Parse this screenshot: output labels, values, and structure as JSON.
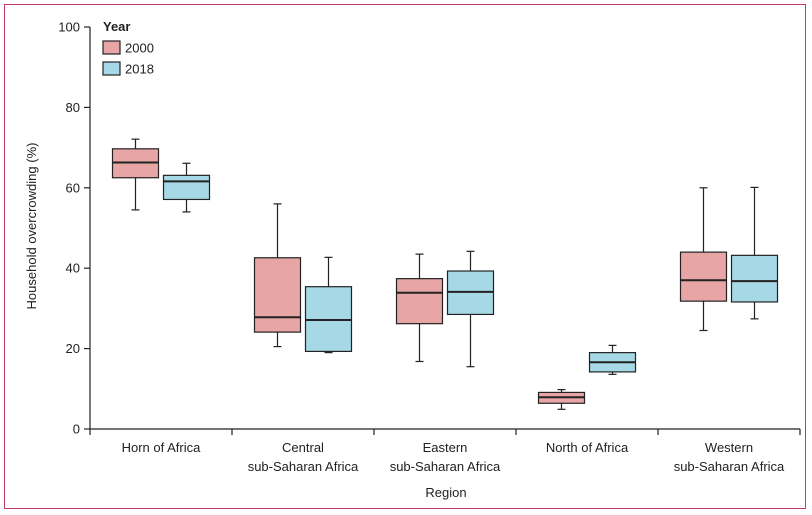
{
  "chart_data": {
    "type": "boxplot",
    "title": "",
    "xlabel": "Region",
    "ylabel": "Household overcrowding (%)",
    "ylim": [
      0,
      100
    ],
    "yticks": [
      0,
      20,
      40,
      60,
      80,
      100
    ],
    "categories": [
      [
        "Horn of Africa"
      ],
      [
        "Central",
        "sub-Saharan Africa"
      ],
      [
        "Eastern",
        "sub-Saharan Africa"
      ],
      [
        "North of Africa"
      ],
      [
        "Western",
        "sub-Saharan Africa"
      ]
    ],
    "legend": {
      "title": "Year",
      "placement": "top-left"
    },
    "series": [
      {
        "name": "2000",
        "color": "#e8a5a5",
        "boxes": [
          {
            "min": 54.5,
            "q1": 62.5,
            "median": 66.3,
            "q3": 69.7,
            "max": 72.1
          },
          {
            "min": 20.5,
            "q1": 24.1,
            "median": 27.8,
            "q3": 42.6,
            "max": 56.0
          },
          {
            "min": 16.8,
            "q1": 26.2,
            "median": 33.9,
            "q3": 37.4,
            "max": 43.5
          },
          {
            "min": 4.9,
            "q1": 6.4,
            "median": 7.9,
            "q3": 9.1,
            "max": 9.8
          },
          {
            "min": 24.5,
            "q1": 31.8,
            "median": 37.0,
            "q3": 44.0,
            "max": 60.0
          }
        ]
      },
      {
        "name": "2018",
        "color": "#a6d8e6",
        "boxes": [
          {
            "min": 54.0,
            "q1": 57.1,
            "median": 61.6,
            "q3": 63.1,
            "max": 66.1
          },
          {
            "min": 19.0,
            "q1": 19.3,
            "median": 27.1,
            "q3": 35.4,
            "max": 42.7
          },
          {
            "min": 15.5,
            "q1": 28.5,
            "median": 34.1,
            "q3": 39.3,
            "max": 44.2
          },
          {
            "min": 13.6,
            "q1": 14.2,
            "median": 16.6,
            "q3": 19.0,
            "max": 20.8
          },
          {
            "min": 27.4,
            "q1": 31.6,
            "median": 36.8,
            "q3": 43.2,
            "max": 60.1
          }
        ]
      }
    ]
  }
}
